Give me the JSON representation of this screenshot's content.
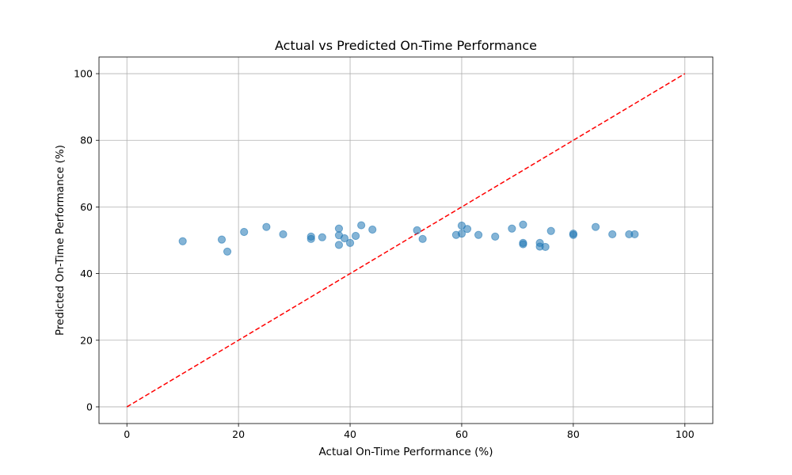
{
  "chart_data": {
    "type": "scatter",
    "title": "Actual vs Predicted On-Time Performance",
    "xlabel": "Actual On-Time Performance (%)",
    "ylabel": "Predicted On-Time Performance (%)",
    "xlim": [
      -5,
      105
    ],
    "ylim": [
      -5,
      105
    ],
    "xticks": [
      0,
      20,
      40,
      60,
      80,
      100
    ],
    "yticks": [
      0,
      20,
      40,
      60,
      80,
      100
    ],
    "grid": true,
    "point_color": "#1f77b4",
    "point_alpha": 0.55,
    "reference_line": {
      "x": [
        0,
        100
      ],
      "y": [
        0,
        100
      ],
      "style": "dashed",
      "color": "#ff0000"
    },
    "points": [
      {
        "x": 10,
        "y": 49.7
      },
      {
        "x": 17,
        "y": 50.2
      },
      {
        "x": 18,
        "y": 46.6
      },
      {
        "x": 21,
        "y": 52.5
      },
      {
        "x": 25,
        "y": 54.0
      },
      {
        "x": 28,
        "y": 51.8
      },
      {
        "x": 33,
        "y": 51.1
      },
      {
        "x": 33,
        "y": 50.4
      },
      {
        "x": 35,
        "y": 50.9
      },
      {
        "x": 38,
        "y": 53.5
      },
      {
        "x": 38,
        "y": 51.5
      },
      {
        "x": 38,
        "y": 48.6
      },
      {
        "x": 39,
        "y": 50.6
      },
      {
        "x": 40,
        "y": 49.2
      },
      {
        "x": 41,
        "y": 51.3
      },
      {
        "x": 42,
        "y": 54.5
      },
      {
        "x": 44,
        "y": 53.2
      },
      {
        "x": 52,
        "y": 53.0
      },
      {
        "x": 53,
        "y": 50.4
      },
      {
        "x": 59,
        "y": 51.6
      },
      {
        "x": 60,
        "y": 54.4
      },
      {
        "x": 60,
        "y": 52.0
      },
      {
        "x": 61,
        "y": 53.4
      },
      {
        "x": 63,
        "y": 51.6
      },
      {
        "x": 66,
        "y": 51.1
      },
      {
        "x": 69,
        "y": 53.5
      },
      {
        "x": 71,
        "y": 54.7
      },
      {
        "x": 71,
        "y": 49.2
      },
      {
        "x": 71,
        "y": 48.8
      },
      {
        "x": 74,
        "y": 49.2
      },
      {
        "x": 74,
        "y": 48.1
      },
      {
        "x": 75,
        "y": 48.0
      },
      {
        "x": 76,
        "y": 52.8
      },
      {
        "x": 80,
        "y": 52.0
      },
      {
        "x": 80,
        "y": 51.6
      },
      {
        "x": 84,
        "y": 54.0
      },
      {
        "x": 87,
        "y": 51.8
      },
      {
        "x": 90,
        "y": 51.8
      },
      {
        "x": 91,
        "y": 51.8
      }
    ]
  }
}
